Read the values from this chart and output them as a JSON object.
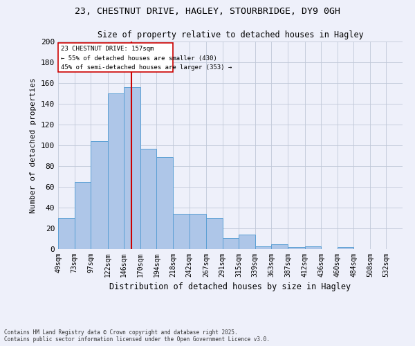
{
  "title_line1": "23, CHESTNUT DRIVE, HAGLEY, STOURBRIDGE, DY9 0GH",
  "title_line2": "Size of property relative to detached houses in Hagley",
  "xlabel": "Distribution of detached houses by size in Hagley",
  "ylabel": "Number of detached properties",
  "footnote": "Contains HM Land Registry data © Crown copyright and database right 2025.\nContains public sector information licensed under the Open Government Licence v3.0.",
  "bin_labels": [
    "49sqm",
    "73sqm",
    "97sqm",
    "122sqm",
    "146sqm",
    "170sqm",
    "194sqm",
    "218sqm",
    "242sqm",
    "267sqm",
    "291sqm",
    "315sqm",
    "339sqm",
    "363sqm",
    "387sqm",
    "412sqm",
    "436sqm",
    "460sqm",
    "484sqm",
    "508sqm",
    "532sqm"
  ],
  "bar_heights": [
    30,
    65,
    104,
    150,
    156,
    97,
    89,
    34,
    34,
    30,
    11,
    14,
    3,
    5,
    2,
    3,
    0,
    2,
    0,
    0,
    0
  ],
  "bar_color": "#aec6e8",
  "bar_edge_color": "#5a9fd4",
  "property_line_label": "23 CHESTNUT DRIVE: 157sqm",
  "annotation_line2": "← 55% of detached houses are smaller (430)",
  "annotation_line3": "45% of semi-detached houses are larger (353) →",
  "annotation_box_color": "#cc0000",
  "vline_color": "#cc0000",
  "ylim": [
    0,
    200
  ],
  "yticks": [
    0,
    20,
    40,
    60,
    80,
    100,
    120,
    140,
    160,
    180,
    200
  ],
  "background_color": "#eef0fa"
}
